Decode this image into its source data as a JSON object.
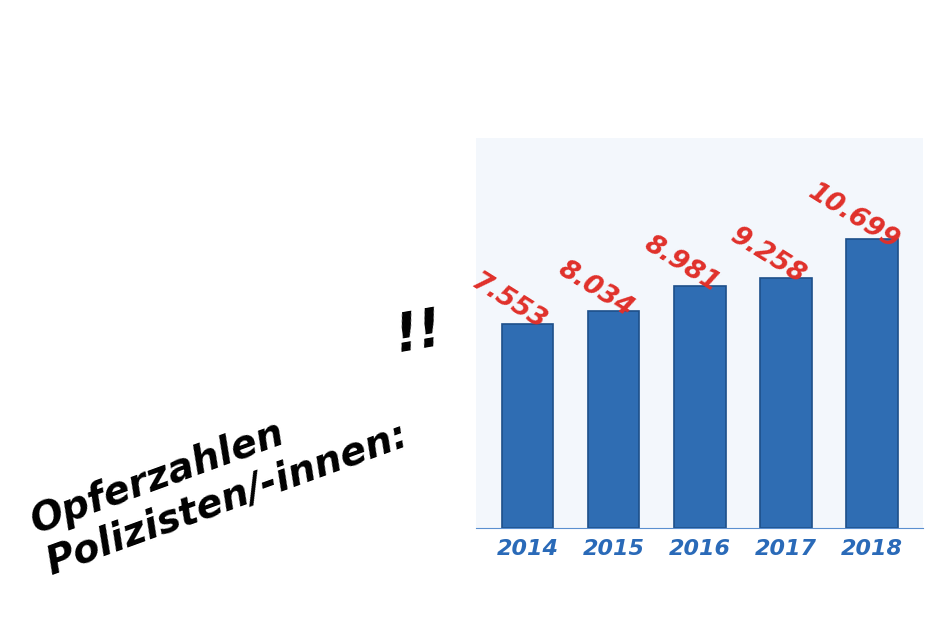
{
  "chart_data": {
    "type": "bar",
    "title": "Opferzahlen\nPolizisten/-innen:",
    "annotations": [
      "!!"
    ],
    "categories": [
      "2014",
      "2015",
      "2016",
      "2017",
      "2018"
    ],
    "values": [
      7553,
      8034,
      8981,
      9258,
      10699
    ],
    "value_labels": [
      "7.553",
      "8.034",
      "8.981",
      "9.258",
      "10.699"
    ],
    "data_labels": true,
    "tick_labels": "x",
    "color": "#2f6db3"
  }
}
